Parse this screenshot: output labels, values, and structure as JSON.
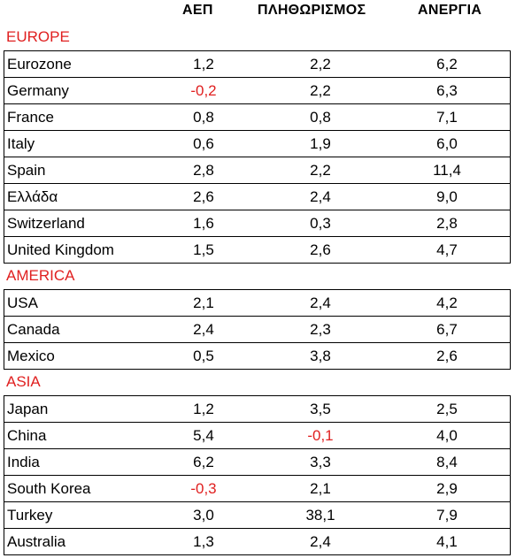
{
  "headers": {
    "gdp": "ΑΕΠ",
    "inflation": "ΠΛΗΘΩΡΙΣΜΟΣ",
    "unemployment": "ΑΝΕΡΓΙΑ"
  },
  "colors": {
    "negative": "#e02020",
    "region_title": "#e02020"
  },
  "regions": [
    {
      "title": "EUROPE",
      "rows": [
        {
          "name": "Eurozone",
          "gdp": "1,2",
          "inflation": "2,2",
          "unemployment": "6,2"
        },
        {
          "name": "Germany",
          "gdp": "-0,2",
          "inflation": "2,2",
          "unemployment": "6,3"
        },
        {
          "name": "France",
          "gdp": "0,8",
          "inflation": "0,8",
          "unemployment": "7,1"
        },
        {
          "name": "Italy",
          "gdp": "0,6",
          "inflation": "1,9",
          "unemployment": "6,0"
        },
        {
          "name": "Spain",
          "gdp": "2,8",
          "inflation": "2,2",
          "unemployment": "11,4"
        },
        {
          "name": "Ελλάδα",
          "gdp": "2,6",
          "inflation": "2,4",
          "unemployment": "9,0"
        },
        {
          "name": "Switzerland",
          "gdp": "1,6",
          "inflation": "0,3",
          "unemployment": "2,8"
        },
        {
          "name": "United Kingdom",
          "gdp": "1,5",
          "inflation": "2,6",
          "unemployment": "4,7"
        }
      ]
    },
    {
      "title": "AMERICA",
      "rows": [
        {
          "name": "USA",
          "gdp": "2,1",
          "inflation": "2,4",
          "unemployment": "4,2"
        },
        {
          "name": "Canada",
          "gdp": "2,4",
          "inflation": "2,3",
          "unemployment": "6,7"
        },
        {
          "name": "Mexico",
          "gdp": "0,5",
          "inflation": "3,8",
          "unemployment": "2,6"
        }
      ]
    },
    {
      "title": "ASIA",
      "rows": [
        {
          "name": "Japan",
          "gdp": "1,2",
          "inflation": "3,5",
          "unemployment": "2,5"
        },
        {
          "name": "China",
          "gdp": "5,4",
          "inflation": "-0,1",
          "unemployment": "4,0"
        },
        {
          "name": "India",
          "gdp": "6,2",
          "inflation": "3,3",
          "unemployment": "8,4"
        },
        {
          "name": "South Korea",
          "gdp": "-0,3",
          "inflation": "2,1",
          "unemployment": "2,9"
        },
        {
          "name": "Turkey",
          "gdp": "3,0",
          "inflation": "38,1",
          "unemployment": "7,9"
        },
        {
          "name": "Australia",
          "gdp": "1,3",
          "inflation": "2,4",
          "unemployment": "4,1"
        }
      ]
    }
  ]
}
